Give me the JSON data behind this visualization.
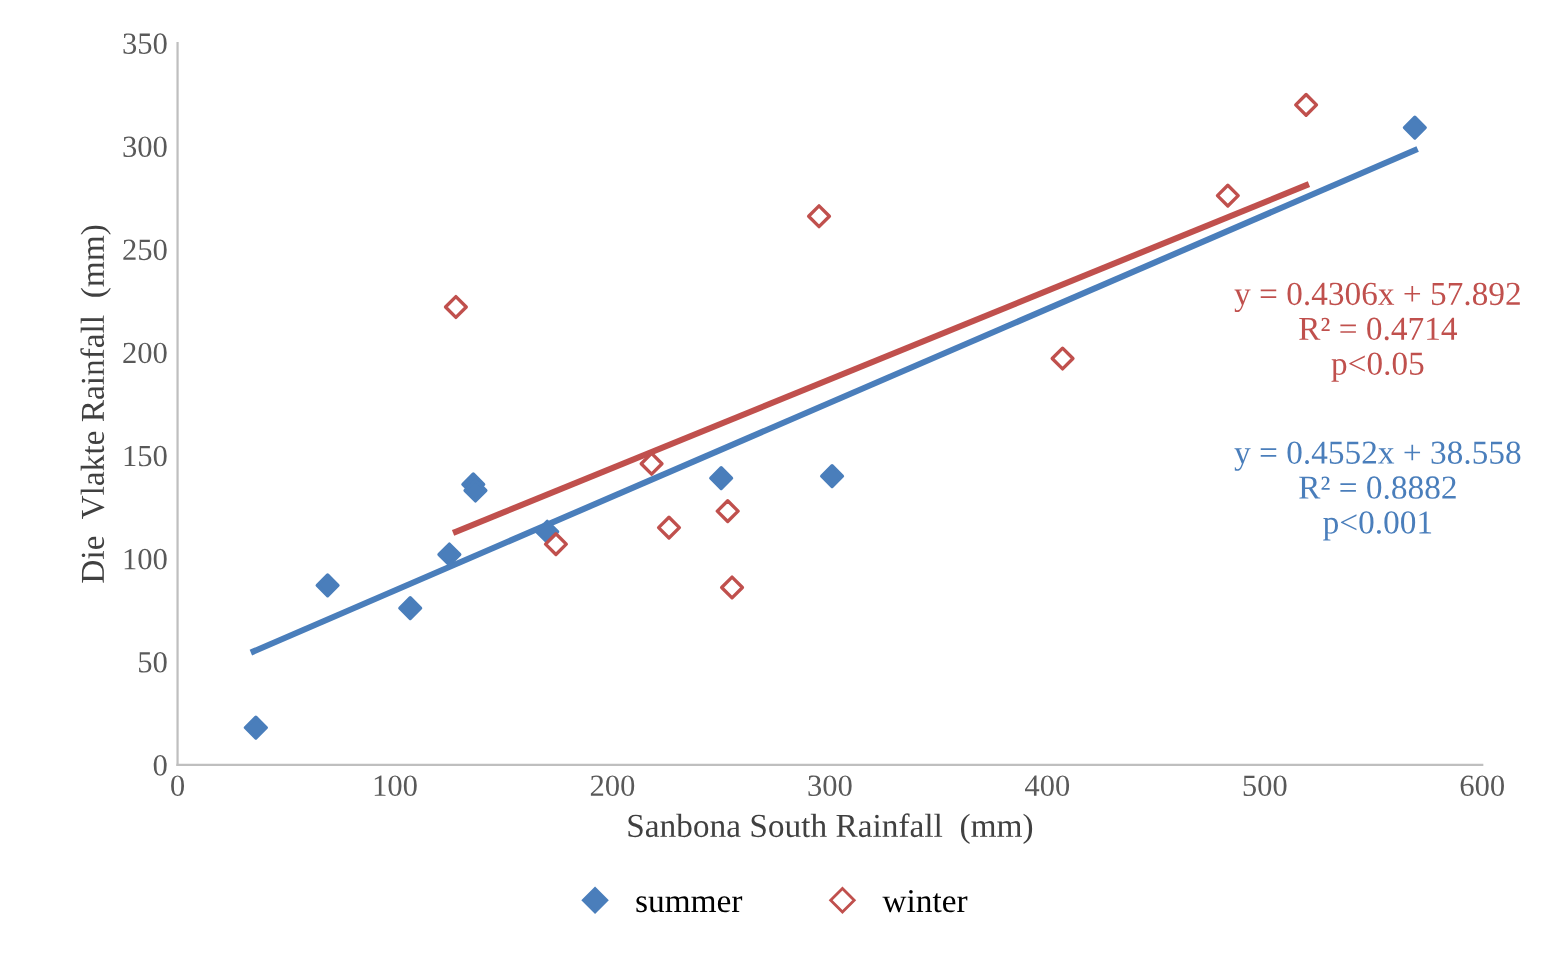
{
  "chart_data": {
    "type": "scatter",
    "xlabel": "Sanbona South Rainfall  (mm)",
    "ylabel": "Die  Vlakte Rainfall  (mm)",
    "xlim": [
      0,
      600
    ],
    "xticks": [
      0,
      100,
      200,
      300,
      400,
      500,
      600
    ],
    "ylim": [
      0,
      350
    ],
    "yticks": [
      0,
      50,
      100,
      150,
      200,
      250,
      300,
      350
    ],
    "grid": false,
    "legend": "bottom",
    "marker": "diamond",
    "series": [
      {
        "name": "summer",
        "color": "#4a7ebb",
        "x": [
          36,
          69,
          107,
          125,
          136,
          137,
          170,
          250,
          301,
          569
        ],
        "values": [
          18,
          87,
          76,
          102,
          136,
          133,
          113,
          139,
          140,
          309
        ]
      },
      {
        "name": "winter",
        "color": "#c0504d",
        "x": [
          128,
          174,
          218,
          226,
          253,
          255,
          295,
          407,
          483,
          519
        ],
        "values": [
          222,
          107,
          146,
          115,
          123,
          86,
          266,
          197,
          276,
          320
        ]
      },
      {
        "type": "line",
        "marker": "none",
        "color": "#4a7ebb",
        "x": [
          35,
          569
        ],
        "values": [
          55,
          298
        ]
      },
      {
        "type": "line",
        "marker": "none",
        "color": "#c0504d",
        "x": [
          128,
          519
        ],
        "values": [
          113,
          281
        ]
      }
    ],
    "annotations": [
      "y = 0.4306x + 57.892\nR² = 0.4714\np<0.05",
      "y = 0.4552x + 38.558\nR² = 0.8882\np<0.001"
    ]
  }
}
